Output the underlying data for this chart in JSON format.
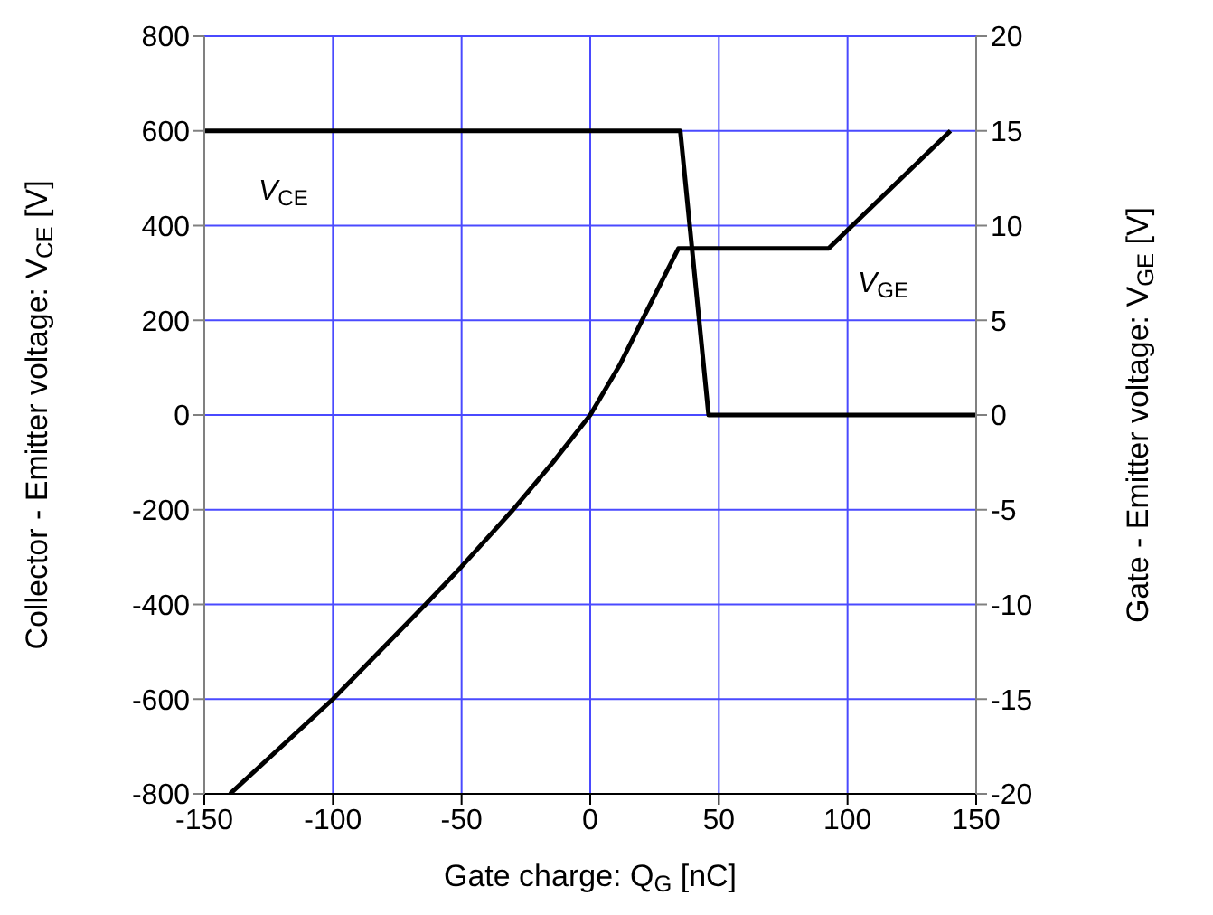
{
  "chart_data": {
    "type": "line",
    "xlabel": "Gate charge: Q$_{G}$ [nC]",
    "ylabel": "Collector - Emitter voltage:  V$_{CE}$ [V]",
    "y2label": "Gate - Emitter voltage:  V$_{GE}$ [V]",
    "xlim": [
      -150,
      150
    ],
    "xticks": [
      -150,
      -100,
      -50,
      0,
      50,
      100,
      150
    ],
    "ylim": [
      -800,
      800
    ],
    "yticks": [
      -800,
      -600,
      -400,
      -200,
      0,
      200,
      400,
      600,
      800
    ],
    "y2lim": [
      -20,
      20
    ],
    "y2ticks": [
      -20,
      -15,
      -10,
      -5,
      0,
      5,
      10,
      15,
      20
    ],
    "grid": true,
    "marker": "none",
    "line_style": "solid",
    "series": [
      {
        "name": "V$_{CE}$",
        "color": "#000000",
        "x": [
          -150,
          35,
          46,
          150
        ],
        "values": [
          600,
          600,
          0,
          0
        ]
      },
      {
        "name": "V$_{GE}$",
        "color": "#000000",
        "axis": "y2",
        "x": [
          -140,
          -100,
          -64,
          -50,
          -30,
          -14.5,
          0,
          11.7,
          22,
          34.3,
          92.7,
          140
        ],
        "values": [
          -20,
          -15,
          -10,
          -8,
          -5,
          -2.5,
          0,
          2.7,
          5.5,
          8.8,
          8.8,
          15
        ]
      }
    ]
  }
}
